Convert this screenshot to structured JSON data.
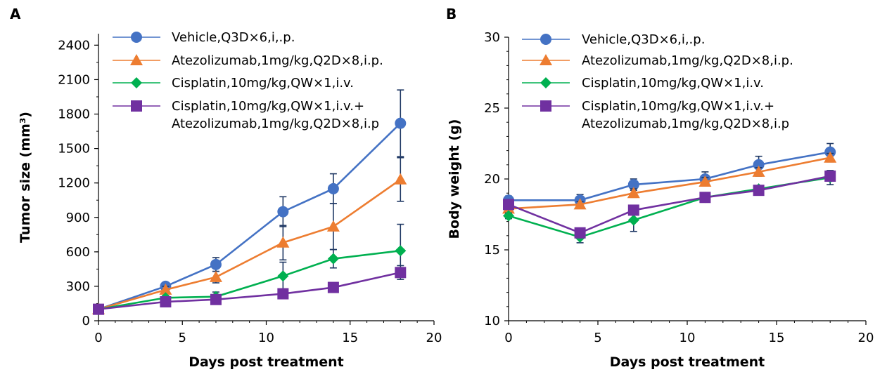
{
  "chart_data": [
    {
      "type": "line",
      "panel_label": "A",
      "xlabel": "Days post treatment",
      "ylabel": "Tumor size (mm³)",
      "xlim": [
        0,
        20
      ],
      "ylim": [
        0,
        2500
      ],
      "x_ticks": [
        0,
        5,
        10,
        15,
        20
      ],
      "y_ticks": [
        0,
        300,
        600,
        900,
        1200,
        1500,
        1800,
        2100,
        2400
      ],
      "grid": false,
      "legend_position": "top",
      "series": [
        {
          "name": "Vehicle,Q3D×6,i,.p.",
          "color": "#4472C4",
          "marker": "circle",
          "x": [
            0,
            4,
            7,
            11,
            14,
            18
          ],
          "y": [
            100,
            300,
            490,
            950,
            1150,
            1720
          ],
          "err": [
            10,
            30,
            60,
            130,
            130,
            290
          ]
        },
        {
          "name": "Atezolizumab,1mg/kg,Q2D×8,i.p.",
          "color": "#ED7D31",
          "marker": "triangle",
          "x": [
            0,
            4,
            7,
            11,
            14,
            18
          ],
          "y": [
            100,
            270,
            380,
            680,
            820,
            1230
          ],
          "err": [
            10,
            30,
            50,
            150,
            200,
            190
          ]
        },
        {
          "name": "Cisplatin,10mg/kg,QW×1,i.v.",
          "color": "#00B050",
          "marker": "diamond",
          "x": [
            0,
            4,
            7,
            11,
            14,
            18
          ],
          "y": [
            100,
            200,
            210,
            390,
            540,
            610
          ],
          "err": [
            10,
            20,
            40,
            120,
            80,
            230
          ]
        },
        {
          "name": "Cisplatin,10mg/kg,QW×1,i.v.+\nAtezolizumab,1mg/kg,Q2D×8,i.p",
          "color": "#7030A0",
          "marker": "square",
          "x": [
            0,
            4,
            7,
            11,
            14,
            18
          ],
          "y": [
            100,
            165,
            185,
            235,
            290,
            420
          ],
          "err": [
            10,
            20,
            20,
            30,
            40,
            60
          ]
        }
      ]
    },
    {
      "type": "line",
      "panel_label": "B",
      "xlabel": "Days post treatment",
      "ylabel": "Body weight (g)",
      "xlim": [
        0,
        20
      ],
      "ylim": [
        10,
        30
      ],
      "x_ticks": [
        0,
        5,
        10,
        15,
        20
      ],
      "y_ticks": [
        10,
        15,
        20,
        25,
        30
      ],
      "grid": false,
      "legend_position": "top",
      "series": [
        {
          "name": "Vehicle,Q3D×6,i,.p.",
          "color": "#4472C4",
          "marker": "circle",
          "x": [
            0,
            4,
            7,
            11,
            14,
            18
          ],
          "y": [
            18.5,
            18.5,
            19.6,
            20.0,
            21.0,
            21.9
          ],
          "err": [
            0.3,
            0.4,
            0.4,
            0.5,
            0.6,
            0.6
          ]
        },
        {
          "name": "Atezolizumab,1mg/kg,Q2D×8,i.p.",
          "color": "#ED7D31",
          "marker": "triangle",
          "x": [
            0,
            4,
            7,
            11,
            14,
            18
          ],
          "y": [
            17.9,
            18.2,
            19.0,
            19.8,
            20.5,
            21.5
          ],
          "err": [
            0.2,
            0.2,
            0.3,
            0.3,
            0.3,
            0.3
          ]
        },
        {
          "name": "Cisplatin,10mg/kg,QW×1,i.v.",
          "color": "#00B050",
          "marker": "diamond",
          "x": [
            0,
            4,
            7,
            11,
            14,
            18
          ],
          "y": [
            17.4,
            15.9,
            17.1,
            18.7,
            19.3,
            20.1
          ],
          "err": [
            0.2,
            0.4,
            0.8,
            0.3,
            0.2,
            0.5
          ]
        },
        {
          "name": "Cisplatin,10mg/kg,QW×1,i.v.+\nAtezolizumab,1mg/kg,Q2D×8,i.p",
          "color": "#7030A0",
          "marker": "square",
          "x": [
            0,
            4,
            7,
            11,
            14,
            18
          ],
          "y": [
            18.2,
            16.2,
            17.8,
            18.7,
            19.2,
            20.2
          ],
          "err": [
            0.3,
            0.3,
            0.3,
            0.3,
            0.3,
            0.3
          ]
        }
      ]
    }
  ]
}
